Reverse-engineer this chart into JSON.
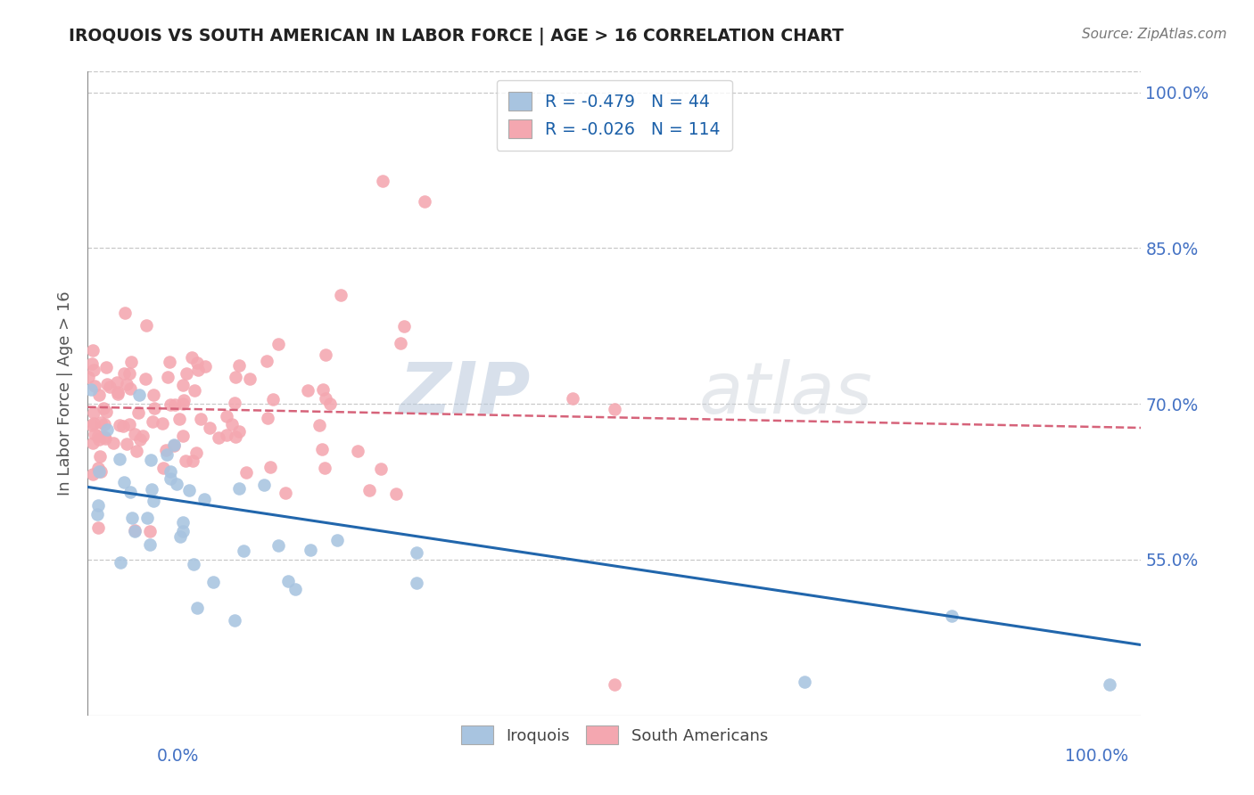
{
  "title": "IROQUOIS VS SOUTH AMERICAN IN LABOR FORCE | AGE > 16 CORRELATION CHART",
  "source": "Source: ZipAtlas.com",
  "ylabel": "In Labor Force | Age > 16",
  "xmin": 0.0,
  "xmax": 1.0,
  "ymin": 0.4,
  "ymax": 1.02,
  "yticks": [
    0.55,
    0.7,
    0.85,
    1.0
  ],
  "ytick_labels": [
    "55.0%",
    "70.0%",
    "85.0%",
    "100.0%"
  ],
  "legend_R_blue": "-0.479",
  "legend_N_blue": "44",
  "legend_R_pink": "-0.026",
  "legend_N_pink": "114",
  "blue_color": "#a8c4e0",
  "pink_color": "#f4a7b0",
  "blue_line_color": "#2166ac",
  "pink_line_color": "#d6637a",
  "axis_label_color": "#4472c4",
  "watermark_color": "#d0d8e8",
  "blue_line_y0": 0.62,
  "blue_line_y1": 0.468,
  "pink_line_y0": 0.697,
  "pink_line_y1": 0.677
}
